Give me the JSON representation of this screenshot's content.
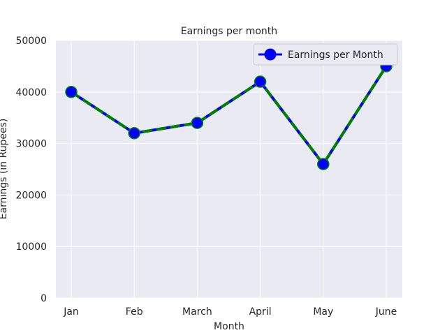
{
  "chart_data": {
    "type": "line",
    "title": "Earnings per month",
    "xlabel": "Month",
    "ylabel": "Earnings (in Rupees)",
    "categories": [
      "Jan",
      "Feb",
      "March",
      "April",
      "May",
      "June"
    ],
    "series": [
      {
        "name": "Earnings per Month",
        "values": [
          40000,
          32000,
          34000,
          42000,
          26000,
          45000
        ]
      }
    ],
    "ylim": [
      0,
      50000
    ],
    "yticks": [
      0,
      10000,
      20000,
      30000,
      40000,
      50000
    ],
    "grid": true,
    "legend": "top-right",
    "colors": {
      "plot_background": "#eaeaf2",
      "grid": "#ffffff",
      "line_primary": "#0000ff",
      "line_dash": "#008000",
      "marker_fill": "#0000ff",
      "marker_edge": "#008000"
    }
  }
}
